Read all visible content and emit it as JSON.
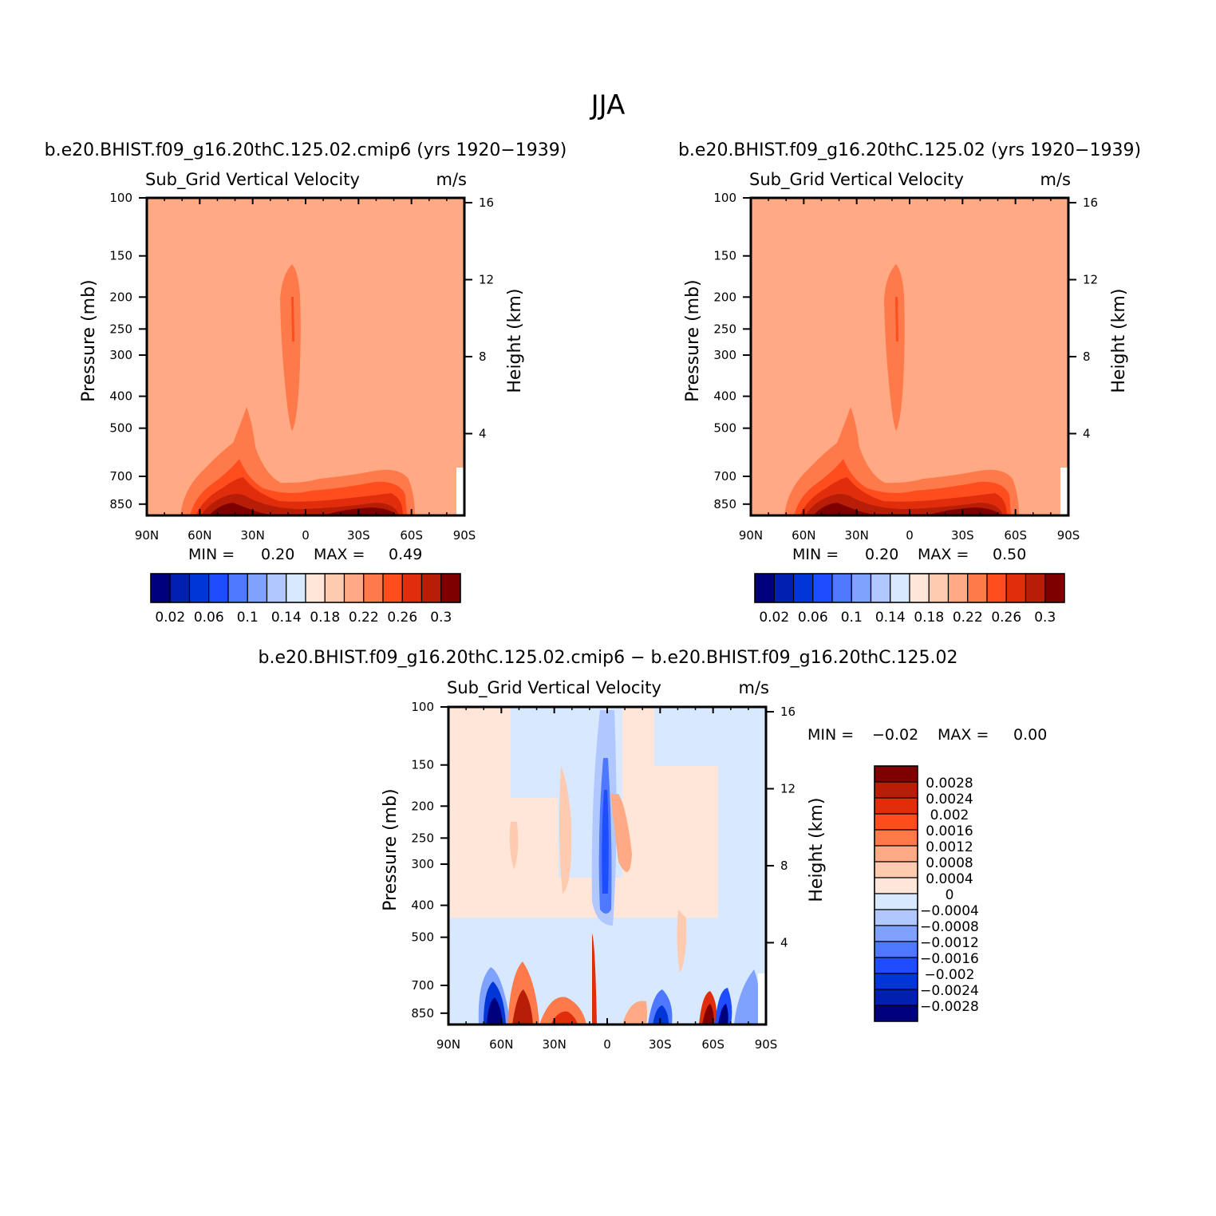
{
  "figure": {
    "title": "JJA"
  },
  "colormap_main": [
    "#00007f",
    "#0020b0",
    "#0035d8",
    "#1e4cff",
    "#4d78ff",
    "#7fa1ff",
    "#b0c8ff",
    "#d8e8ff",
    "#ffe6d8",
    "#ffcbb0",
    "#ffaa85",
    "#ff7a4a",
    "#ff4d1e",
    "#e02e0c",
    "#b81d08",
    "#7f0000"
  ],
  "colormap_diff": [
    "#00007f",
    "#0020b0",
    "#0035d8",
    "#1e4cff",
    "#4d78ff",
    "#7fa1ff",
    "#b0c8ff",
    "#d8e8ff",
    "#ffe6d8",
    "#ffcbb0",
    "#ffaa85",
    "#ff7a4a",
    "#ff4d1e",
    "#e02e0c",
    "#b81d08",
    "#7f0000"
  ],
  "chart_data": [
    {
      "type": "heatmap",
      "subtitle": "b.e20.BHIST.f09_g16.20thC.125.02.cmip6 (yrs 1920−1939)",
      "variable": "Sub_Grid Vertical Velocity",
      "units": "m/s",
      "ylabel": "Pressure (mb)",
      "ylabel_right": "Height (km)",
      "x_ticks": [
        "90N",
        "60N",
        "30N",
        "0",
        "30S",
        "60S",
        "90S"
      ],
      "y_ticks": [
        "100",
        "150",
        "200",
        "250",
        "300",
        "400",
        "500",
        "700",
        "850"
      ],
      "y_ticks_right": [
        "16",
        "12",
        "8",
        "4"
      ],
      "min_label": "MIN =",
      "min_value": "0.20",
      "max_label": "MAX =",
      "max_value": "0.49",
      "colorbar_labels": [
        "0.02",
        "0.06",
        "0.1",
        "0.14",
        "0.18",
        "0.22",
        "0.26",
        "0.3"
      ]
    },
    {
      "type": "heatmap",
      "subtitle": "b.e20.BHIST.f09_g16.20thC.125.02 (yrs 1920−1939)",
      "variable": "Sub_Grid Vertical Velocity",
      "units": "m/s",
      "ylabel": "Pressure (mb)",
      "ylabel_right": "Height (km)",
      "x_ticks": [
        "90N",
        "60N",
        "30N",
        "0",
        "30S",
        "60S",
        "90S"
      ],
      "y_ticks": [
        "100",
        "150",
        "200",
        "250",
        "300",
        "400",
        "500",
        "700",
        "850"
      ],
      "y_ticks_right": [
        "16",
        "12",
        "8",
        "4"
      ],
      "min_label": "MIN =",
      "min_value": "0.20",
      "max_label": "MAX =",
      "max_value": "0.50",
      "colorbar_labels": [
        "0.02",
        "0.06",
        "0.1",
        "0.14",
        "0.18",
        "0.22",
        "0.26",
        "0.3"
      ]
    },
    {
      "type": "heatmap",
      "subtitle": "b.e20.BHIST.f09_g16.20thC.125.02.cmip6 − b.e20.BHIST.f09_g16.20thC.125.02",
      "variable": "Sub_Grid Vertical Velocity",
      "units": "m/s",
      "ylabel": "Pressure (mb)",
      "ylabel_right": "Height (km)",
      "x_ticks": [
        "90N",
        "60N",
        "30N",
        "0",
        "30S",
        "60S",
        "90S"
      ],
      "y_ticks": [
        "100",
        "150",
        "200",
        "250",
        "300",
        "400",
        "500",
        "700",
        "850"
      ],
      "y_ticks_right": [
        "16",
        "12",
        "8",
        "4"
      ],
      "min_label": "MIN =",
      "min_value": "−0.02",
      "max_label": "MAX =",
      "max_value": "0.00",
      "colorbar_labels": [
        "0.0028",
        "0.0024",
        "0.002",
        "0.0016",
        "0.0012",
        "0.0008",
        "0.0004",
        "0",
        "−0.0004",
        "−0.0008",
        "−0.0012",
        "−0.0016",
        "−0.002",
        "−0.0024",
        "−0.0028"
      ]
    }
  ]
}
